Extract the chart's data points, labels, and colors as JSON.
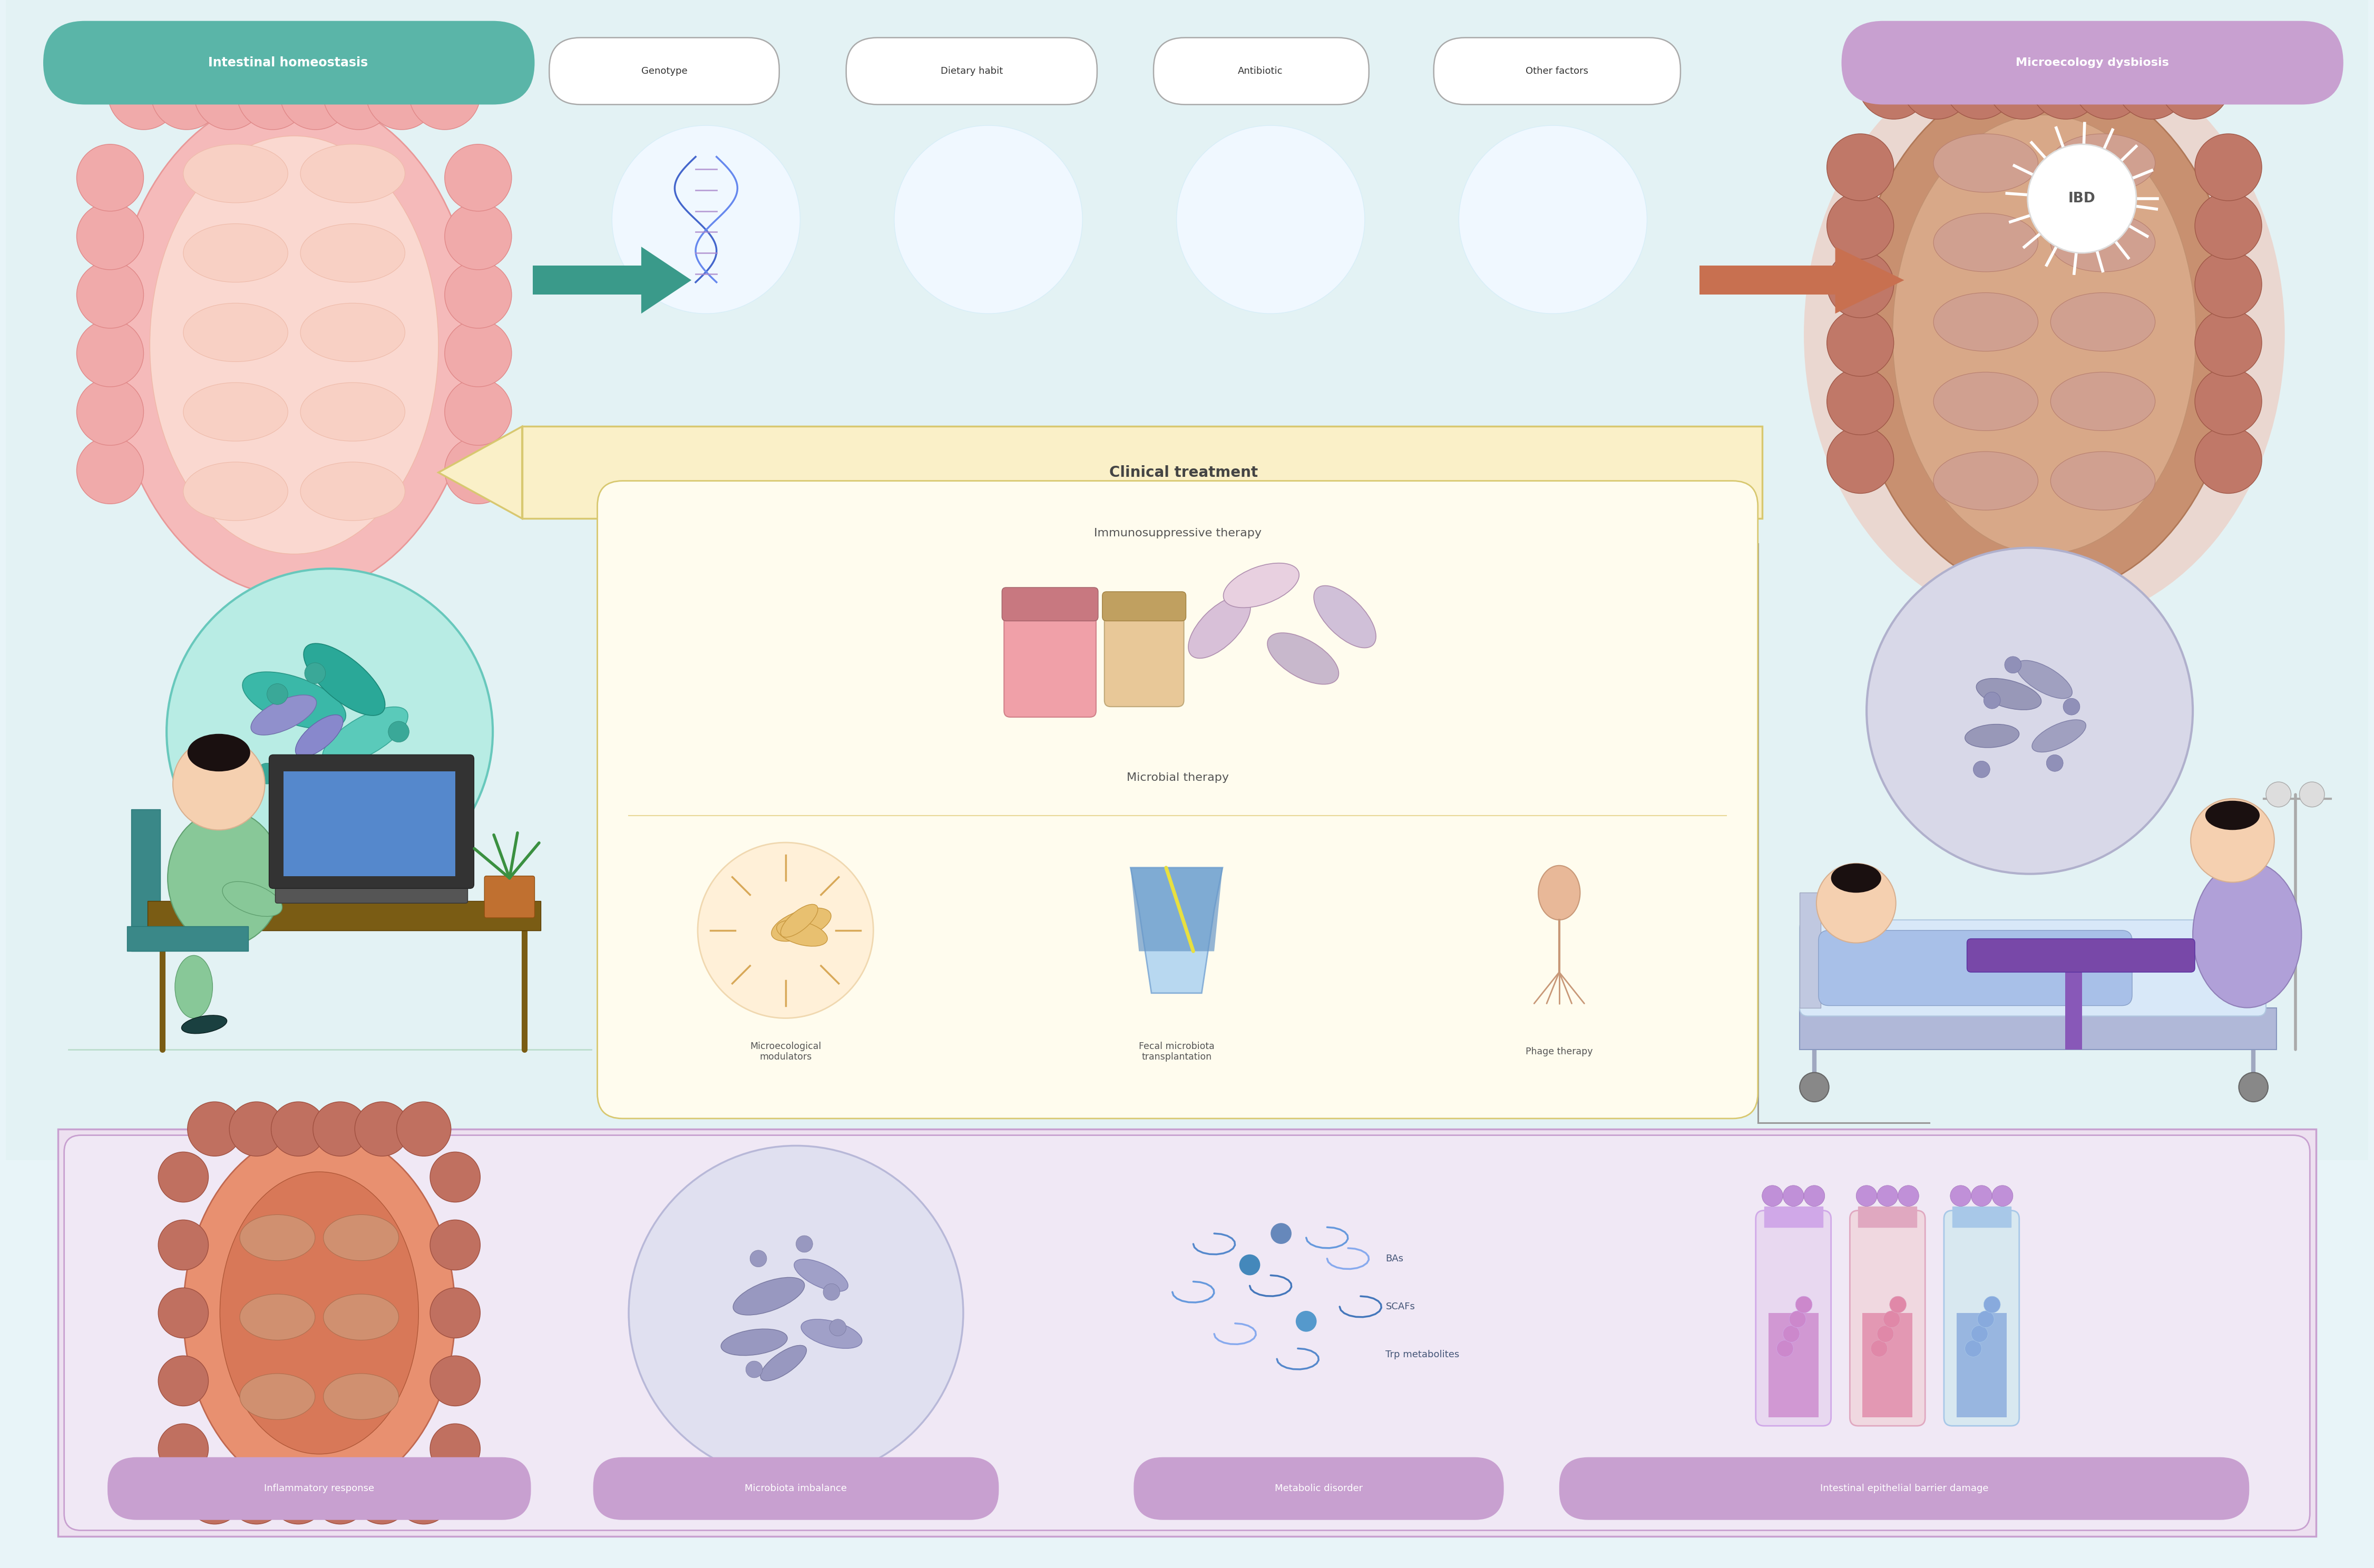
{
  "bg_color": "#e8f4f8",
  "bottom_panel_color": "#ede0f0",
  "clinical_box_color": "#fffbee",
  "clinical_box_edge": "#e8d5a0",
  "arrow_color": "#3a9a8a",
  "arrow_right_color": "#c87050",
  "label_homeostasis_bg": "#5ab5a8",
  "label_homeostasis_text": "#ffffff",
  "label_dysbiosis_bg": "#c8a0d0",
  "label_dysbiosis_text": "#ffffff",
  "title_text": "Intestinal homeostasis",
  "title_dysbiosis": "Microecology dysbiosis",
  "factor_labels": [
    "Genotype",
    "Dietary habit",
    "Antibiotic",
    "Other factors"
  ],
  "clinical_title": "Clinical treatment",
  "immuno_text": "Immunosuppressive therapy",
  "microbial_text": "Microbial therapy",
  "therapy_labels": [
    "Microecological\nmodulators",
    "Fecal microbiota\ntransplantation",
    "Phage therapy"
  ],
  "bottom_labels": [
    "Inflammatory response",
    "Microbiota imbalance",
    "Metabolic disorder",
    "Intestinal epithelial barrier damage"
  ],
  "bottom_label_bg": "#c8a0d0",
  "metabolic_items": [
    "BAs",
    "SCAFs",
    "Trp metabolites"
  ],
  "ibd_text": "IBD"
}
